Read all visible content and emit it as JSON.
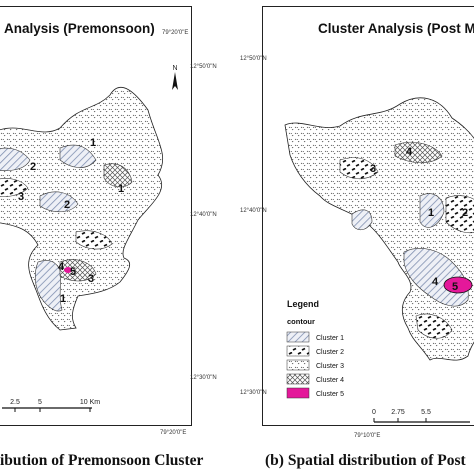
{
  "panel_a": {
    "title": "Analysis (Premonsoon)",
    "north": "N",
    "coords": {
      "lat_top": "12°50'0\"N",
      "lat_mid": "12°40'0\"N",
      "lat_bottom": "12°30'0\"N",
      "lon_top": "79°20'0\"E",
      "lon_bottom": "79°20'0\"E"
    },
    "cluster_labels": [
      "1",
      "2",
      "3",
      "1",
      "2",
      "4",
      "5",
      "3",
      "1"
    ],
    "scale": {
      "ticks": [
        "2.5",
        "5",
        "10 Km"
      ]
    },
    "caption": "ibution of Premonsoon Cluster"
  },
  "panel_b": {
    "title": "Cluster Analysis (Post M",
    "coords": {
      "lat_top": "12°50'0\"N",
      "lat_mid": "12°40'0\"N",
      "lat_bottom": "12°30'0\"N",
      "lon_bottom": "79°10'0\"E"
    },
    "cluster_labels": [
      "4",
      "3",
      "1",
      "2",
      "4",
      "5"
    ],
    "legend": {
      "title": "Legend",
      "subtitle": "contour",
      "items": [
        {
          "label": "Cluster 1",
          "swatch": "diagonal-hatch"
        },
        {
          "label": "Cluster 2",
          "swatch": "dash-marks"
        },
        {
          "label": "Cluster 3",
          "swatch": "dot-scatter"
        },
        {
          "label": "Cluster 4",
          "swatch": "crosshatch"
        },
        {
          "label": "Cluster 5",
          "swatch": "magenta",
          "color": "#e4189a"
        }
      ]
    },
    "scale": {
      "ticks": [
        "0",
        "2.75",
        "5.5"
      ]
    },
    "caption_prefix": "(b)",
    "caption": "Spatial distribution of Post"
  },
  "colors": {
    "cluster5": "#e4189a",
    "hatch1": "#7f8fb0"
  }
}
